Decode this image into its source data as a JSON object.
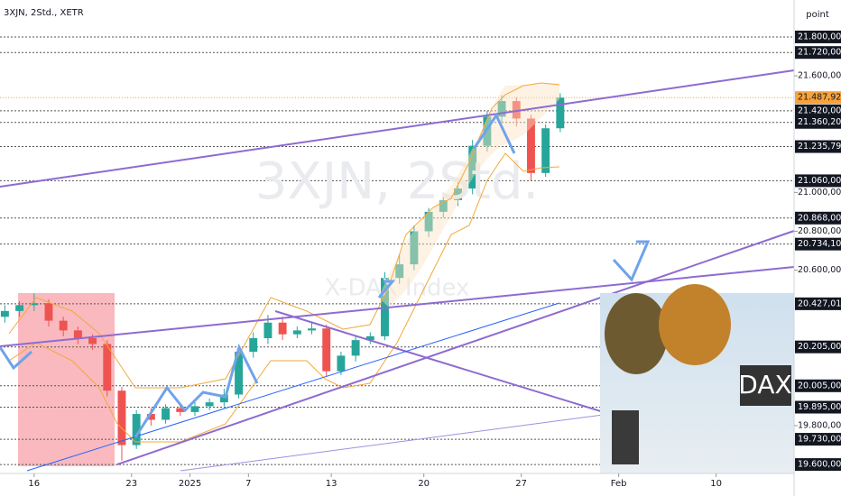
{
  "chart_data": {
    "type": "candlestick",
    "title": "3XJN, 2Std., XETR",
    "watermark": "3XJN, 2Std.",
    "watermark_sub": "X-DAX Index",
    "y_axis_title": "point",
    "image_label": "DAX",
    "up_color": "#26a69a",
    "down_color": "#ef5350",
    "xlim": [
      -1,
      162
    ],
    "ylim": [
      19554,
      21990
    ],
    "xticks": [
      {
        "value": 6,
        "label": "16"
      },
      {
        "value": 26,
        "label": "23"
      },
      {
        "value": 38,
        "label": "2025"
      },
      {
        "value": 50,
        "label": "7"
      },
      {
        "value": 67,
        "label": "13"
      },
      {
        "value": 86,
        "label": "20"
      },
      {
        "value": 106,
        "label": "27"
      },
      {
        "value": 126,
        "label": "Feb"
      },
      {
        "value": 146,
        "label": "10"
      }
    ],
    "yticks": [
      {
        "value": 21600,
        "label": "21.600,00"
      },
      {
        "value": 21000,
        "label": "21.000,00"
      },
      {
        "value": 20800,
        "label": "20.800,00"
      },
      {
        "value": 20600,
        "label": "20.600,00"
      },
      {
        "value": 19800,
        "label": "19.800,00"
      }
    ],
    "levels": [
      {
        "value": 21800,
        "label": "21.800,00"
      },
      {
        "value": 21720,
        "label": "21.720,00"
      },
      {
        "value": 21420,
        "label": "21.420,00"
      },
      {
        "value": 21360.2,
        "label": "21.360,20"
      },
      {
        "value": 21235.79,
        "label": "21.235,79"
      },
      {
        "value": 21060,
        "label": "21.060,00"
      },
      {
        "value": 20868,
        "label": "20.868,00"
      },
      {
        "value": 20734.1,
        "label": "20.734,10"
      },
      {
        "value": 20427.01,
        "label": "20.427,01"
      },
      {
        "value": 20205,
        "label": "20.205,00"
      },
      {
        "value": 20005,
        "label": "20.005,00"
      },
      {
        "value": 19895,
        "label": "19.895,00"
      },
      {
        "value": 19730,
        "label": "19.730,00"
      },
      {
        "value": 19600,
        "label": "19.600,00"
      }
    ],
    "last_price": {
      "value": 21487.92,
      "label": "21.487,92"
    },
    "x": [
      0,
      3,
      6,
      9,
      12,
      15,
      18,
      21,
      24,
      27,
      30,
      33,
      36,
      39,
      42,
      45,
      48,
      51,
      54,
      57,
      60,
      63,
      66,
      69,
      72,
      75,
      78,
      81,
      84,
      87,
      90,
      93,
      96,
      99,
      102,
      105,
      108,
      111,
      114
    ],
    "open": [
      20360,
      20390,
      20420,
      20430,
      20340,
      20290,
      20250,
      20220,
      19980,
      19700,
      19860,
      19830,
      19890,
      19870,
      19900,
      19920,
      19960,
      20180,
      20250,
      20330,
      20270,
      20290,
      20300,
      20080,
      20160,
      20240,
      20260,
      20560,
      20630,
      20800,
      20900,
      20960,
      21020,
      21240,
      21390,
      21470,
      21380,
      21100,
      21330
    ],
    "high": [
      20420,
      20440,
      20480,
      20450,
      20360,
      20310,
      20270,
      20240,
      20000,
      19880,
      19890,
      19910,
      19910,
      19920,
      19940,
      19990,
      20210,
      20280,
      20370,
      20360,
      20310,
      20330,
      20320,
      20180,
      20260,
      20280,
      20590,
      20680,
      20830,
      20920,
      20980,
      21050,
      21270,
      21420,
      21500,
      21490,
      21400,
      21350,
      21510
    ],
    "low": [
      20330,
      20360,
      20390,
      20310,
      20260,
      20220,
      20190,
      19950,
      19620,
      19680,
      19800,
      19810,
      19850,
      19850,
      19880,
      19900,
      19940,
      20150,
      20220,
      20240,
      20250,
      20270,
      20050,
      20060,
      20130,
      20220,
      20240,
      20530,
      20600,
      20770,
      20870,
      20930,
      20990,
      21210,
      21360,
      21340,
      21060,
      21080,
      21310
    ],
    "close": [
      20390,
      20420,
      20430,
      20340,
      20290,
      20250,
      20220,
      19980,
      19700,
      19860,
      19830,
      19890,
      19870,
      19900,
      19920,
      19960,
      20180,
      20250,
      20330,
      20270,
      20290,
      20300,
      20080,
      20160,
      20240,
      20260,
      20560,
      20630,
      20800,
      20900,
      20960,
      21020,
      21240,
      21390,
      21470,
      21380,
      21100,
      21330,
      21487.92
    ]
  }
}
